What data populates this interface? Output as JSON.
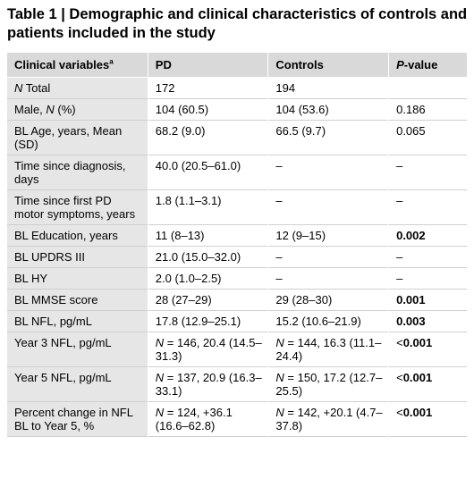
{
  "title": "Table 1 | Demographic and clinical characteristics of controls and patients included in the study",
  "columns": {
    "variable": "Clinical variables",
    "variable_sup": "a",
    "pd": "PD",
    "controls": "Controls",
    "p_italic": "P",
    "p_rest": "-value"
  },
  "rows": [
    {
      "var_italic": "N",
      "var": " Total",
      "pd": "172",
      "controls": "194",
      "p": "",
      "p_bold": false
    },
    {
      "var": "Male, ",
      "var_italic2": "N",
      "var_tail": " (%)",
      "pd": "104 (60.5)",
      "controls": "104 (53.6)",
      "p": "0.186",
      "p_bold": false
    },
    {
      "var": "BL Age, years, Mean (SD)",
      "pd": "68.2 (9.0)",
      "controls": "66.5 (9.7)",
      "p": "0.065",
      "p_bold": false
    },
    {
      "var": "Time since diagnosis, days",
      "pd": "40.0 (20.5–61.0)",
      "controls": "–",
      "p": "–",
      "p_bold": false
    },
    {
      "var": "Time since first PD motor symptoms, years",
      "pd": "1.8 (1.1–3.1)",
      "controls": "–",
      "p": "–",
      "p_bold": false
    },
    {
      "var": "BL Education, years",
      "pd": "11 (8–13)",
      "controls": "12 (9–15)",
      "p": "0.002",
      "p_bold": true
    },
    {
      "var": "BL UPDRS III",
      "pd": "21.0 (15.0–32.0)",
      "controls": "–",
      "p": "–",
      "p_bold": false
    },
    {
      "var": "BL HY",
      "pd": "2.0 (1.0–2.5)",
      "controls": "–",
      "p": "–",
      "p_bold": false
    },
    {
      "var": "BL MMSE score",
      "pd": "28 (27–29)",
      "controls": "29 (28–30)",
      "p": "0.001",
      "p_bold": true
    },
    {
      "var": "BL NFL, pg/mL",
      "pd": "17.8 (12.9–25.1)",
      "controls": "15.2 (10.6–21.9)",
      "p": "0.003",
      "p_bold": true
    },
    {
      "var": "Year 3 NFL, pg/mL",
      "pd_n": "N",
      "pd": " = 146, 20.4 (14.5–31.3)",
      "controls_n": "N",
      "controls": " = 144, 16.3 (11.1–24.4)",
      "p_lt": "<",
      "p": "0.001",
      "p_bold": true
    },
    {
      "var": "Year 5 NFL, pg/mL",
      "pd_n": "N",
      "pd": " = 137, 20.9 (16.3–33.1)",
      "controls_n": "N",
      "controls": " = 150, 17.2 (12.7–25.5)",
      "p_lt": "<",
      "p": "0.001",
      "p_bold": true
    },
    {
      "var": "Percent change in NFL BL to Year 5, %",
      "pd_n": "N",
      "pd": " = 124, +36.1 (16.6–62.8)",
      "controls_n": "N",
      "controls": " = 142, +20.1 (4.7–37.8)",
      "p_lt": "<",
      "p": "0.001",
      "p_bold": true
    }
  ]
}
